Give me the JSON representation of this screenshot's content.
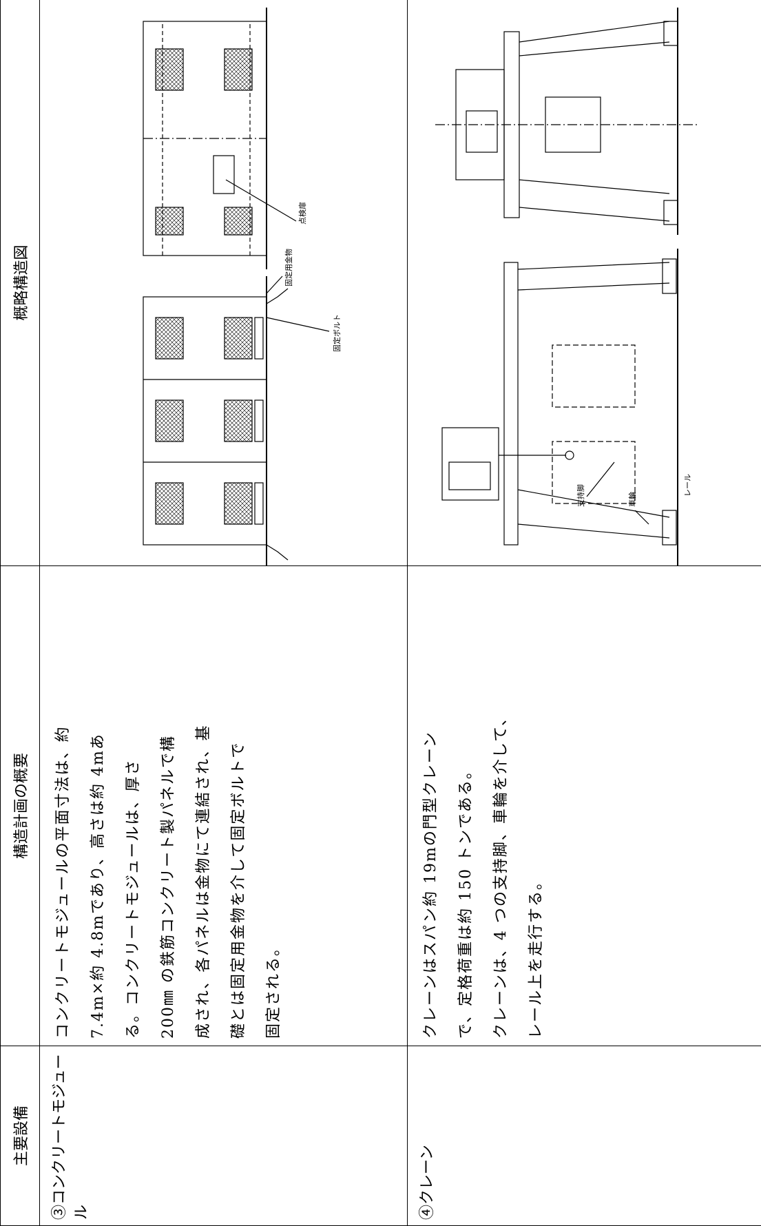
{
  "header": {
    "equipment": "主要設備",
    "summary": "構造計画の概要",
    "diagram": "概略構造図"
  },
  "rows": [
    {
      "equipment": "③コンクリートモジュール",
      "summary": [
        "コンクリートモジュールの平面寸法は、約",
        "7.4m×約 4.8mであり、高さは約 4mあ",
        "る。コンクリートモジュールは、厚さ",
        "200㎜ の鉄筋コンクリート製パネルで構",
        "成され、各パネルは金物にて連結され、基",
        "礎とは固定用金物を介して固定ボルトで",
        "固定される。"
      ],
      "labels": [
        "固定用金物",
        "固定ボルト",
        "点検扉"
      ]
    },
    {
      "equipment": "④クレーン",
      "summary": [
        "クレーンはスパン約 19mの門型クレーン",
        "で、定格荷重は約 150 トンである。",
        "クレーンは、4 つの支持脚、車輪を介して、",
        "レール上を走行する。"
      ],
      "labels": [
        "支持脚",
        "車輪",
        "レール"
      ]
    }
  ]
}
